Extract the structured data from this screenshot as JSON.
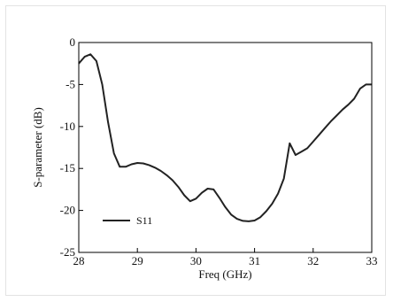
{
  "chart_data": {
    "type": "line",
    "xlabel": "Freq (GHz)",
    "ylabel": "S-parameter (dB)",
    "xlim": [
      28,
      33
    ],
    "ylim": [
      -25,
      0
    ],
    "xticks": [
      28,
      29,
      30,
      31,
      32,
      33
    ],
    "yticks": [
      0,
      -5,
      -10,
      -15,
      -20,
      -25
    ],
    "legend": {
      "placement": "bottom-left"
    },
    "grid": false,
    "series": [
      {
        "name": "S11",
        "color": "#222222",
        "x": [
          28.0,
          28.1,
          28.2,
          28.3,
          28.4,
          28.5,
          28.6,
          28.7,
          28.8,
          28.9,
          29.0,
          29.1,
          29.2,
          29.3,
          29.4,
          29.5,
          29.6,
          29.7,
          29.8,
          29.9,
          30.0,
          30.1,
          30.2,
          30.3,
          30.4,
          30.5,
          30.6,
          30.7,
          30.8,
          30.9,
          31.0,
          31.1,
          31.2,
          31.3,
          31.4,
          31.5,
          31.6,
          31.7,
          31.8,
          31.9,
          32.0,
          32.1,
          32.2,
          32.3,
          32.4,
          32.5,
          32.6,
          32.7,
          32.8,
          32.9,
          33.0
        ],
        "y": [
          -2.5,
          -1.7,
          -1.4,
          -2.2,
          -5.0,
          -9.5,
          -13.2,
          -14.8,
          -14.8,
          -14.5,
          -14.35,
          -14.4,
          -14.6,
          -14.9,
          -15.3,
          -15.8,
          -16.4,
          -17.2,
          -18.2,
          -18.9,
          -18.6,
          -17.9,
          -17.4,
          -17.5,
          -18.5,
          -19.6,
          -20.5,
          -21.0,
          -21.25,
          -21.3,
          -21.2,
          -20.8,
          -20.1,
          -19.2,
          -18.0,
          -16.2,
          -12.0,
          -13.4,
          -13.0,
          -12.6,
          -11.8,
          -11.0,
          -10.2,
          -9.4,
          -8.7,
          -8.0,
          -7.4,
          -6.7,
          -5.5,
          -5.0,
          -5.0
        ]
      }
    ]
  }
}
